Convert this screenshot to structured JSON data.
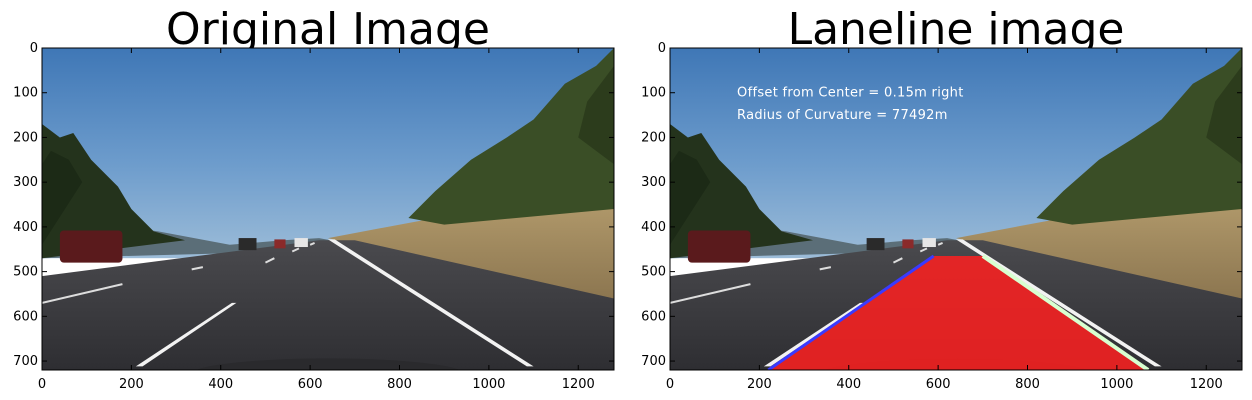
{
  "chart_data": [
    {
      "type": "image",
      "title": "Original Image",
      "xlim": [
        0,
        1280
      ],
      "ylim": [
        720,
        0
      ],
      "xticks": [
        0,
        200,
        400,
        600,
        800,
        1000,
        1200
      ],
      "yticks": [
        0,
        100,
        200,
        300,
        400,
        500,
        600,
        700
      ],
      "lane_overlay": false,
      "annotations": []
    },
    {
      "type": "image",
      "title": "Laneline image",
      "xlim": [
        0,
        1280
      ],
      "ylim": [
        720,
        0
      ],
      "xticks": [
        0,
        200,
        400,
        600,
        800,
        1000,
        1200
      ],
      "yticks": [
        0,
        100,
        200,
        300,
        400,
        500,
        600,
        700
      ],
      "lane_overlay": true,
      "lane_polygon": [
        [
          590,
          465
        ],
        [
          700,
          465
        ],
        [
          1070,
          720
        ],
        [
          220,
          720
        ]
      ],
      "lane_color": "#ff2020",
      "left_line_color": "#3a3aff",
      "right_line_color": "#d8ffd0",
      "annotations": [
        {
          "text": "Offset from Center = 0.15m right",
          "x": 150,
          "y": 100
        },
        {
          "text": "Radius of Curvature = 77492m",
          "x": 150,
          "y": 150
        }
      ]
    }
  ]
}
